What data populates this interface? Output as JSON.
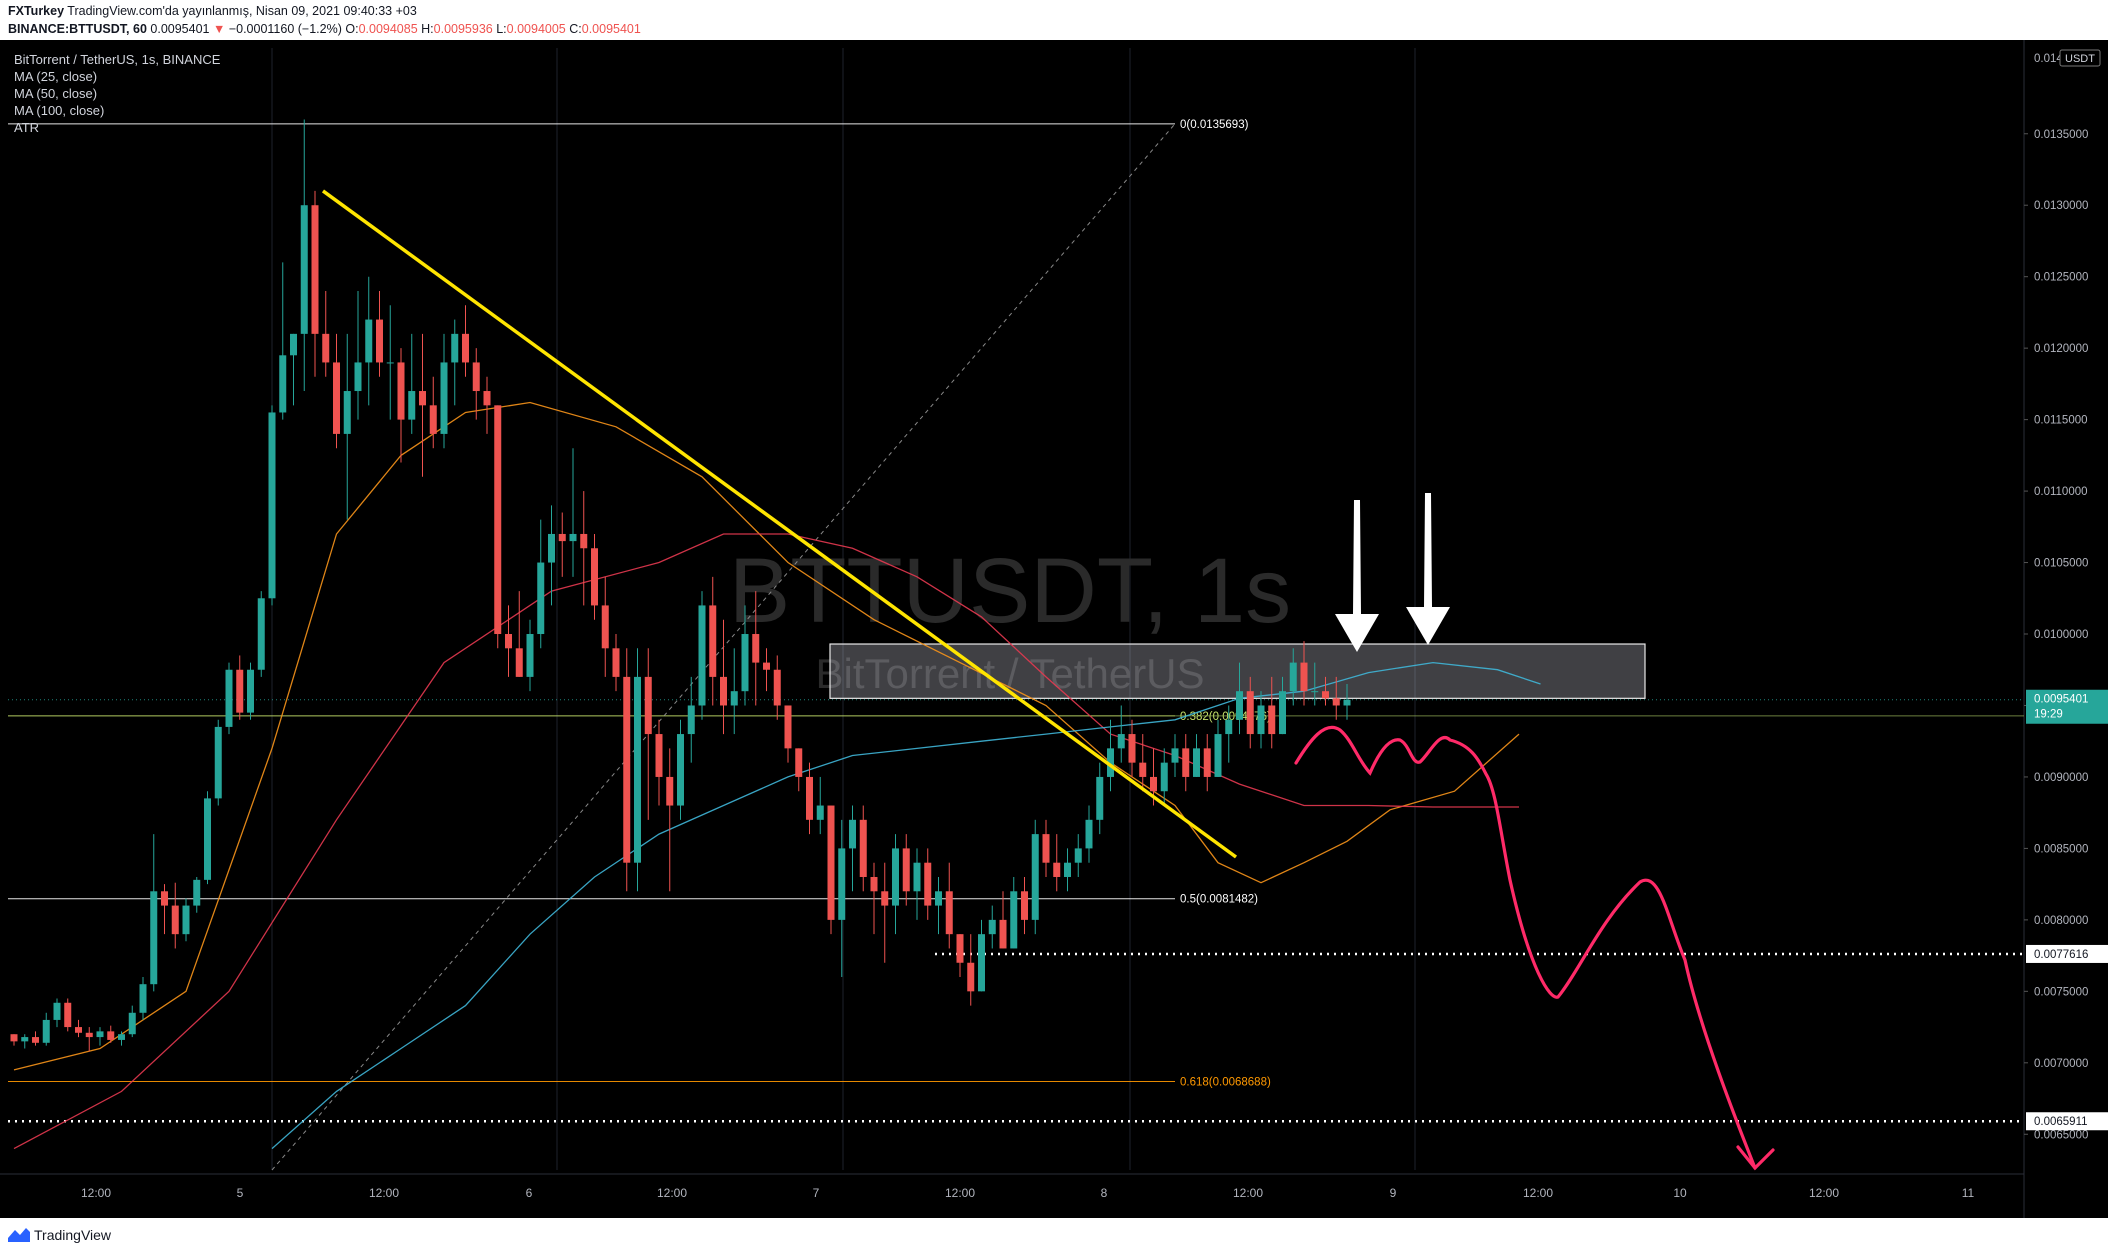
{
  "header": {
    "author": "FXTurkey",
    "published": "TradingView.com'da yayınlanmış, Nisan 09, 2021 09:40:33 +03",
    "symbol_line": "BINANCE:BTTUSDT, 60",
    "last": "0.0095401",
    "change": "−0.0001160 (−1.2%)",
    "open_label": "O:",
    "open": "0.0094085",
    "high_label": "H:",
    "high": "0.0095936",
    "low_label": "L:",
    "low": "0.0094005",
    "close_label": "C:",
    "close": "0.0095401"
  },
  "legend": {
    "title": "BitTorrent / TetherUS, 1s, BINANCE",
    "items": [
      "MA (25, close)",
      "MA (50, close)",
      "MA (100, close)",
      "ATR"
    ]
  },
  "watermark": {
    "symbol": "BTTUSDT, 1s",
    "name": "BitTorrent / TetherUS"
  },
  "footer": {
    "brand": "TradingView"
  },
  "colors": {
    "background": "#000000",
    "up": "#26a69a",
    "down": "#ef5350",
    "ma25": "#f7931a",
    "ma50": "#e53950",
    "ma100": "#3fb6d8",
    "trendline": "#ffe500",
    "projection": "#ff2a68"
  },
  "chart_data": {
    "type": "candlestick",
    "timeframe": "1s",
    "currency": "USDT",
    "x_ticks": [
      "12:00",
      "5",
      "12:00",
      "6",
      "12:00",
      "7",
      "12:00",
      "8",
      "12:00",
      "9",
      "12:00",
      "10",
      "12:00",
      "11"
    ],
    "y_ticks": [
      "0.0065000",
      "0.0070000",
      "0.0075000",
      "0.0080000",
      "0.0085000",
      "0.0090000",
      "0.0095000",
      "0.0100000",
      "0.0105000",
      "0.0110000",
      "0.0115000",
      "0.0120000",
      "0.0125000",
      "0.0130000",
      "0.0135000"
    ],
    "y_top_label": "0.0140000",
    "ylim": [
      0.00625,
      0.0141
    ],
    "price_tag": {
      "value": "0.0095401",
      "countdown": "19:29"
    },
    "level_tags": [
      "0.0077616",
      "0.0065911"
    ],
    "fib_levels": [
      {
        "label": "0(0.0135693)",
        "value": 0.0135693
      },
      {
        "label": "0.382(0.0094276)",
        "value": 0.0094276
      },
      {
        "label": "0.5(0.0081482)",
        "value": 0.0081482
      },
      {
        "label": "0.618(0.0068688)",
        "value": 0.0068688
      }
    ],
    "resistance_zone": [
      0.00955,
      0.00993
    ],
    "series": [
      {
        "name": "MA (25, close)",
        "x": [
          0,
          8,
          16,
          24,
          30,
          36,
          42,
          48,
          56,
          64,
          72,
          80,
          88,
          96,
          102,
          108,
          112,
          116,
          120,
          124,
          128,
          134,
          140
        ],
        "y": [
          0.00695,
          0.0071,
          0.0075,
          0.0092,
          0.0107,
          0.01125,
          0.01155,
          0.01162,
          0.01145,
          0.0111,
          0.0105,
          0.0101,
          0.0098,
          0.0095,
          0.0091,
          0.0088,
          0.0084,
          0.00826,
          0.0084,
          0.00855,
          0.00877,
          0.0089,
          0.0093
        ]
      },
      {
        "name": "MA (50, close)",
        "x": [
          0,
          10,
          20,
          30,
          40,
          50,
          60,
          66,
          72,
          78,
          84,
          90,
          96,
          102,
          108,
          114,
          120,
          126,
          132,
          140
        ],
        "y": [
          0.0064,
          0.0068,
          0.0075,
          0.0087,
          0.0098,
          0.0103,
          0.0105,
          0.0107,
          0.0107,
          0.0106,
          0.0104,
          0.01012,
          0.0097,
          0.0093,
          0.00915,
          0.00895,
          0.0088,
          0.0088,
          0.00879,
          0.00879
        ]
      },
      {
        "name": "MA (100, close)",
        "x": [
          24,
          30,
          36,
          42,
          48,
          54,
          60,
          66,
          72,
          78,
          84,
          90,
          96,
          102,
          108,
          114,
          120,
          126,
          132,
          138,
          142
        ],
        "y": [
          0.0064,
          0.0068,
          0.0071,
          0.0074,
          0.0079,
          0.0083,
          0.0086,
          0.0088,
          0.009,
          0.00915,
          0.0092,
          0.00925,
          0.0093,
          0.00935,
          0.0094,
          0.00955,
          0.0096,
          0.00973,
          0.0098,
          0.00975,
          0.00965
        ]
      }
    ],
    "candles": [
      [
        0.0072,
        0.0072,
        0.00712,
        0.00715
      ],
      [
        0.00715,
        0.0072,
        0.0071,
        0.00718
      ],
      [
        0.00718,
        0.00722,
        0.00712,
        0.00714
      ],
      [
        0.00714,
        0.00735,
        0.00712,
        0.0073
      ],
      [
        0.0073,
        0.00745,
        0.00725,
        0.00742
      ],
      [
        0.00742,
        0.00745,
        0.00722,
        0.00725
      ],
      [
        0.00725,
        0.0073,
        0.00718,
        0.00721
      ],
      [
        0.00721,
        0.00725,
        0.00708,
        0.00718
      ],
      [
        0.00718,
        0.00725,
        0.00712,
        0.00722
      ],
      [
        0.00722,
        0.00726,
        0.00714,
        0.00716
      ],
      [
        0.00716,
        0.00722,
        0.00712,
        0.0072
      ],
      [
        0.0072,
        0.0074,
        0.00718,
        0.00735
      ],
      [
        0.00735,
        0.0076,
        0.0073,
        0.00755
      ],
      [
        0.00755,
        0.0086,
        0.0075,
        0.0082
      ],
      [
        0.0082,
        0.00825,
        0.0079,
        0.0081
      ],
      [
        0.0081,
        0.00826,
        0.0078,
        0.0079
      ],
      [
        0.0079,
        0.00815,
        0.00785,
        0.0081
      ],
      [
        0.0081,
        0.0083,
        0.00805,
        0.00828
      ],
      [
        0.00828,
        0.0089,
        0.00825,
        0.00885
      ],
      [
        0.00885,
        0.0094,
        0.0088,
        0.00935
      ],
      [
        0.00935,
        0.0098,
        0.0093,
        0.00975
      ],
      [
        0.00975,
        0.00985,
        0.0094,
        0.00945
      ],
      [
        0.00945,
        0.0098,
        0.0094,
        0.00975
      ],
      [
        0.00975,
        0.0103,
        0.0097,
        0.01025
      ],
      [
        0.01025,
        0.0116,
        0.0102,
        0.01155
      ],
      [
        0.01155,
        0.0126,
        0.0115,
        0.01195
      ],
      [
        0.01195,
        0.0121,
        0.0116,
        0.0121
      ],
      [
        0.0121,
        0.0136,
        0.0117,
        0.013
      ],
      [
        0.013,
        0.0131,
        0.0118,
        0.0121
      ],
      [
        0.0121,
        0.0124,
        0.0118,
        0.0119
      ],
      [
        0.0119,
        0.0121,
        0.0113,
        0.0114
      ],
      [
        0.0114,
        0.0121,
        0.0108,
        0.0117
      ],
      [
        0.0117,
        0.0124,
        0.0115,
        0.0119
      ],
      [
        0.0119,
        0.0125,
        0.0116,
        0.0122
      ],
      [
        0.0122,
        0.0124,
        0.0118,
        0.0119
      ],
      [
        0.0119,
        0.0123,
        0.0115,
        0.0119
      ],
      [
        0.0119,
        0.012,
        0.0112,
        0.0115
      ],
      [
        0.0115,
        0.0121,
        0.0114,
        0.0117
      ],
      [
        0.0117,
        0.0121,
        0.0111,
        0.0116
      ],
      [
        0.0116,
        0.0118,
        0.0113,
        0.0114
      ],
      [
        0.0114,
        0.0121,
        0.0113,
        0.0119
      ],
      [
        0.0119,
        0.0122,
        0.0116,
        0.0121
      ],
      [
        0.0121,
        0.0123,
        0.0118,
        0.0119
      ],
      [
        0.0119,
        0.012,
        0.0115,
        0.0117
      ],
      [
        0.0117,
        0.0118,
        0.0114,
        0.0116
      ],
      [
        0.0116,
        0.0116,
        0.0099,
        0.01
      ],
      [
        0.01,
        0.0102,
        0.0097,
        0.0099
      ],
      [
        0.0099,
        0.0103,
        0.0097,
        0.0097
      ],
      [
        0.0097,
        0.0101,
        0.0096,
        0.01
      ],
      [
        0.01,
        0.0108,
        0.0099,
        0.0105
      ],
      [
        0.0105,
        0.0109,
        0.0102,
        0.0107
      ],
      [
        0.0107,
        0.01085,
        0.0104,
        0.01065
      ],
      [
        0.01065,
        0.0113,
        0.0104,
        0.0107
      ],
      [
        0.0107,
        0.011,
        0.0102,
        0.0106
      ],
      [
        0.0106,
        0.0107,
        0.0101,
        0.0102
      ],
      [
        0.0102,
        0.0104,
        0.0097,
        0.0099
      ],
      [
        0.0099,
        0.01,
        0.0096,
        0.0097
      ],
      [
        0.0097,
        0.0099,
        0.0082,
        0.0084
      ],
      [
        0.0084,
        0.0099,
        0.0082,
        0.0097
      ],
      [
        0.0097,
        0.0099,
        0.0087,
        0.0093
      ],
      [
        0.0093,
        0.0094,
        0.0088,
        0.009
      ],
      [
        0.009,
        0.0092,
        0.0082,
        0.0088
      ],
      [
        0.0088,
        0.0094,
        0.0087,
        0.0093
      ],
      [
        0.0093,
        0.0097,
        0.0091,
        0.0095
      ],
      [
        0.0095,
        0.0103,
        0.0094,
        0.0102
      ],
      [
        0.0102,
        0.0104,
        0.0095,
        0.0097
      ],
      [
        0.0097,
        0.0101,
        0.0093,
        0.0095
      ],
      [
        0.0095,
        0.0099,
        0.0093,
        0.0096
      ],
      [
        0.0096,
        0.0102,
        0.0095,
        0.01
      ],
      [
        0.01,
        0.0103,
        0.0095,
        0.0098
      ],
      [
        0.0098,
        0.0099,
        0.0096,
        0.00975
      ],
      [
        0.00975,
        0.00985,
        0.0094,
        0.0095
      ],
      [
        0.0095,
        0.0095,
        0.0091,
        0.0092
      ],
      [
        0.0092,
        0.0092,
        0.0089,
        0.009
      ],
      [
        0.009,
        0.0091,
        0.0086,
        0.0087
      ],
      [
        0.0087,
        0.009,
        0.0086,
        0.0088
      ],
      [
        0.0088,
        0.0088,
        0.0079,
        0.008
      ],
      [
        0.008,
        0.0087,
        0.0076,
        0.0085
      ],
      [
        0.0085,
        0.0088,
        0.0082,
        0.0087
      ],
      [
        0.0087,
        0.0088,
        0.0082,
        0.0083
      ],
      [
        0.0083,
        0.0084,
        0.0079,
        0.0082
      ],
      [
        0.0082,
        0.0084,
        0.0077,
        0.0081
      ],
      [
        0.0081,
        0.0086,
        0.0079,
        0.0085
      ],
      [
        0.0085,
        0.0086,
        0.0081,
        0.0082
      ],
      [
        0.0082,
        0.0085,
        0.008,
        0.0084
      ],
      [
        0.0084,
        0.0085,
        0.008,
        0.0081
      ],
      [
        0.0081,
        0.0083,
        0.0079,
        0.0082
      ],
      [
        0.0082,
        0.0084,
        0.0078,
        0.0079
      ],
      [
        0.0079,
        0.0079,
        0.0076,
        0.0077
      ],
      [
        0.0077,
        0.0079,
        0.0074,
        0.0075
      ],
      [
        0.0075,
        0.008,
        0.0075,
        0.0079
      ],
      [
        0.0079,
        0.0081,
        0.0078,
        0.008
      ],
      [
        0.008,
        0.0082,
        0.0078,
        0.0078
      ],
      [
        0.0078,
        0.0083,
        0.0078,
        0.0082
      ],
      [
        0.0082,
        0.0083,
        0.0079,
        0.008
      ],
      [
        0.008,
        0.0087,
        0.0079,
        0.0086
      ],
      [
        0.0086,
        0.0087,
        0.0083,
        0.0084
      ],
      [
        0.0084,
        0.0086,
        0.0082,
        0.0083
      ],
      [
        0.0083,
        0.0085,
        0.0082,
        0.0084
      ],
      [
        0.0084,
        0.0086,
        0.0083,
        0.0085
      ],
      [
        0.0085,
        0.0088,
        0.0084,
        0.0087
      ],
      [
        0.0087,
        0.0091,
        0.0086,
        0.009
      ],
      [
        0.009,
        0.0094,
        0.0089,
        0.0092
      ],
      [
        0.0092,
        0.0095,
        0.0091,
        0.0093
      ],
      [
        0.0093,
        0.0094,
        0.009,
        0.0091
      ],
      [
        0.0091,
        0.0093,
        0.0089,
        0.009
      ],
      [
        0.009,
        0.0092,
        0.0088,
        0.0089
      ],
      [
        0.0089,
        0.0092,
        0.0088,
        0.0091
      ],
      [
        0.0091,
        0.0093,
        0.009,
        0.0092
      ],
      [
        0.0092,
        0.0093,
        0.0089,
        0.009
      ],
      [
        0.009,
        0.0093,
        0.009,
        0.0092
      ],
      [
        0.0092,
        0.0093,
        0.0089,
        0.009
      ],
      [
        0.009,
        0.0094,
        0.009,
        0.0093
      ],
      [
        0.0093,
        0.0095,
        0.0091,
        0.0094
      ],
      [
        0.0094,
        0.0098,
        0.0093,
        0.0096
      ],
      [
        0.0096,
        0.0097,
        0.0092,
        0.0093
      ],
      [
        0.0093,
        0.0096,
        0.0092,
        0.0095
      ],
      [
        0.0095,
        0.0097,
        0.0092,
        0.0093
      ],
      [
        0.0093,
        0.0097,
        0.0093,
        0.0096
      ],
      [
        0.0096,
        0.0099,
        0.0095,
        0.0098
      ],
      [
        0.0098,
        0.00995,
        0.0095,
        0.0096
      ],
      [
        0.0096,
        0.0098,
        0.0095,
        0.0096
      ],
      [
        0.0096,
        0.0097,
        0.0095,
        0.00955
      ],
      [
        0.00955,
        0.0097,
        0.0094,
        0.0095
      ],
      [
        0.0095,
        0.00965,
        0.0094,
        0.00954
      ]
    ]
  }
}
